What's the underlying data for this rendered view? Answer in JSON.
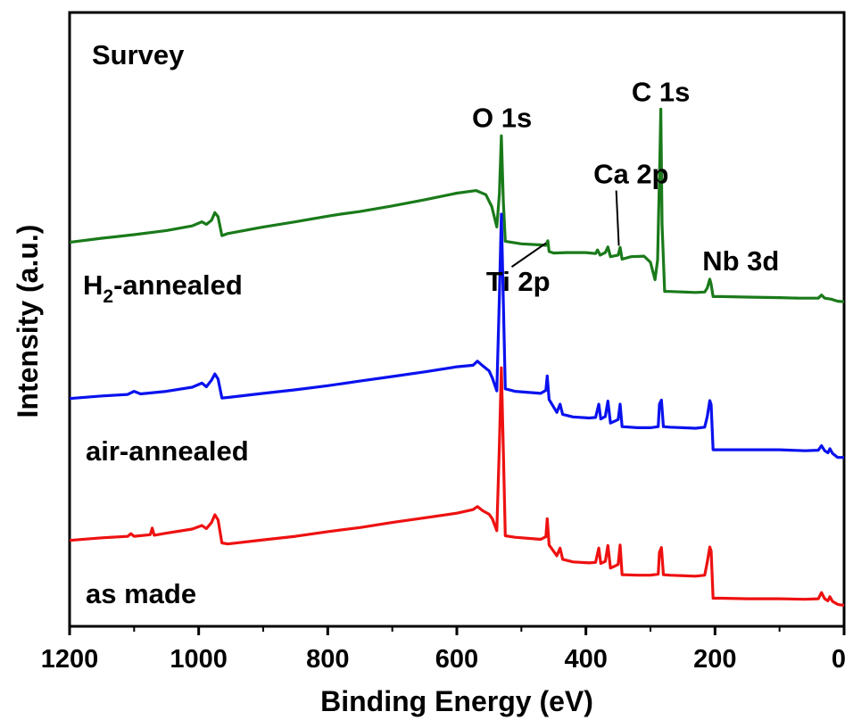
{
  "chart_data": {
    "type": "line",
    "panel_label": "Survey",
    "xlabel": "Binding Energy (eV)",
    "ylabel": "Intensity (a.u.)",
    "xlim": [
      1200,
      0
    ],
    "x_reversed": true,
    "x_ticks": [
      1200,
      1000,
      800,
      600,
      400,
      200,
      0
    ],
    "x_tick_labels": [
      "1200",
      "1000",
      "800",
      "600",
      "400",
      "200",
      "0"
    ],
    "y_ticks_shown": false,
    "ylim": [
      0,
      100
    ],
    "grid": false,
    "series": [
      {
        "name": "H2-annealed",
        "label_main": "H",
        "label_sub": "2",
        "label_rest": "-annealed",
        "color": "#1a7a1a",
        "points": [
          [
            1200,
            71.5
          ],
          [
            1150,
            72.3
          ],
          [
            1100,
            73.0
          ],
          [
            1050,
            73.8
          ],
          [
            1010,
            74.7
          ],
          [
            995,
            75.5
          ],
          [
            988,
            75.0
          ],
          [
            980,
            75.8
          ],
          [
            975,
            77.3
          ],
          [
            970,
            76.5
          ],
          [
            964,
            72.8
          ],
          [
            955,
            73.2
          ],
          [
            900,
            74.5
          ],
          [
            850,
            75.5
          ],
          [
            800,
            76.6
          ],
          [
            780,
            77.0
          ],
          [
            750,
            77.5
          ],
          [
            700,
            78.6
          ],
          [
            650,
            79.8
          ],
          [
            600,
            81.1
          ],
          [
            570,
            81.6
          ],
          [
            555,
            80.8
          ],
          [
            546,
            78.5
          ],
          [
            538,
            74.5
          ],
          [
            534,
            81.0
          ],
          [
            531,
            92.3
          ],
          [
            528,
            79.5
          ],
          [
            525,
            71.7
          ],
          [
            500,
            71.2
          ],
          [
            470,
            71.0
          ],
          [
            462,
            70.9
          ],
          [
            459,
            71.8
          ],
          [
            457,
            69.7
          ],
          [
            450,
            69.4
          ],
          [
            430,
            69.5
          ],
          [
            400,
            69.5
          ],
          [
            385,
            69.3
          ],
          [
            382,
            70.0
          ],
          [
            378,
            69.0
          ],
          [
            370,
            69.5
          ],
          [
            366,
            70.6
          ],
          [
            362,
            68.7
          ],
          [
            350,
            69.0
          ],
          [
            347,
            70.5
          ],
          [
            344,
            68.2
          ],
          [
            330,
            68.7
          ],
          [
            310,
            68.8
          ],
          [
            300,
            67.6
          ],
          [
            293,
            64.2
          ],
          [
            289,
            68.0
          ],
          [
            285,
            90.0
          ],
          [
            284,
            97.5
          ],
          [
            282,
            75.0
          ],
          [
            278,
            61.9
          ],
          [
            270,
            61.9
          ],
          [
            230,
            61.7
          ],
          [
            216,
            61.8
          ],
          [
            212,
            62.6
          ],
          [
            208,
            64.3
          ],
          [
            206,
            63.3
          ],
          [
            203,
            60.9
          ],
          [
            190,
            60.9
          ],
          [
            150,
            60.8
          ],
          [
            100,
            60.7
          ],
          [
            70,
            60.6
          ],
          [
            40,
            60.6
          ],
          [
            35,
            61.2
          ],
          [
            30,
            60.6
          ],
          [
            20,
            60.4
          ],
          [
            10,
            60.0
          ],
          [
            0,
            59.9
          ]
        ]
      },
      {
        "name": "air-annealed",
        "label": "air-annealed",
        "color": "#0a12ee",
        "points": [
          [
            1200,
            41.0
          ],
          [
            1150,
            41.5
          ],
          [
            1110,
            41.8
          ],
          [
            1100,
            42.4
          ],
          [
            1090,
            41.9
          ],
          [
            1050,
            42.4
          ],
          [
            1010,
            43.2
          ],
          [
            995,
            44.0
          ],
          [
            988,
            43.3
          ],
          [
            980,
            44.6
          ],
          [
            975,
            45.8
          ],
          [
            970,
            44.8
          ],
          [
            964,
            41.1
          ],
          [
            955,
            41.2
          ],
          [
            900,
            42.0
          ],
          [
            850,
            42.7
          ],
          [
            800,
            43.5
          ],
          [
            750,
            44.4
          ],
          [
            700,
            45.3
          ],
          [
            650,
            46.2
          ],
          [
            600,
            47.2
          ],
          [
            575,
            47.5
          ],
          [
            568,
            48.3
          ],
          [
            560,
            47.4
          ],
          [
            550,
            46.4
          ],
          [
            545,
            45.0
          ],
          [
            538,
            42.5
          ],
          [
            534,
            61.0
          ],
          [
            531,
            77.0
          ],
          [
            528,
            60.0
          ],
          [
            525,
            42.9
          ],
          [
            510,
            42.4
          ],
          [
            470,
            42.0
          ],
          [
            462,
            42.6
          ],
          [
            460,
            45.4
          ],
          [
            457,
            40.8
          ],
          [
            445,
            38.3
          ],
          [
            440,
            39.9
          ],
          [
            436,
            37.9
          ],
          [
            420,
            37.4
          ],
          [
            395,
            37.2
          ],
          [
            385,
            37.3
          ],
          [
            380,
            39.9
          ],
          [
            377,
            37.0
          ],
          [
            370,
            37.5
          ],
          [
            366,
            40.5
          ],
          [
            362,
            36.2
          ],
          [
            355,
            36.6
          ],
          [
            350,
            36.9
          ],
          [
            347,
            39.9
          ],
          [
            344,
            35.5
          ],
          [
            320,
            35.3
          ],
          [
            300,
            35.3
          ],
          [
            288,
            35.5
          ],
          [
            286,
            39.9
          ],
          [
            283,
            40.7
          ],
          [
            280,
            35.5
          ],
          [
            270,
            35.4
          ],
          [
            230,
            35.2
          ],
          [
            216,
            35.4
          ],
          [
            212,
            37.5
          ],
          [
            208,
            40.6
          ],
          [
            206,
            39.8
          ],
          [
            203,
            31.0
          ],
          [
            190,
            31.0
          ],
          [
            150,
            31.0
          ],
          [
            100,
            31.0
          ],
          [
            60,
            30.8
          ],
          [
            40,
            30.9
          ],
          [
            35,
            31.8
          ],
          [
            30,
            30.8
          ],
          [
            25,
            30.4
          ],
          [
            22,
            31.2
          ],
          [
            18,
            30.3
          ],
          [
            10,
            29.5
          ],
          [
            0,
            29.5
          ]
        ]
      },
      {
        "name": "as made",
        "label": "as made",
        "color": "#ee1111",
        "points": [
          [
            1200,
            13.3
          ],
          [
            1150,
            13.8
          ],
          [
            1110,
            14.1
          ],
          [
            1105,
            14.6
          ],
          [
            1100,
            14.1
          ],
          [
            1075,
            14.4
          ],
          [
            1072,
            15.7
          ],
          [
            1069,
            14.3
          ],
          [
            1050,
            14.7
          ],
          [
            1010,
            15.5
          ],
          [
            995,
            16.2
          ],
          [
            988,
            15.6
          ],
          [
            980,
            16.8
          ],
          [
            975,
            18.3
          ],
          [
            970,
            17.3
          ],
          [
            964,
            12.8
          ],
          [
            955,
            12.6
          ],
          [
            900,
            13.4
          ],
          [
            850,
            14.1
          ],
          [
            800,
            15.0
          ],
          [
            750,
            15.8
          ],
          [
            700,
            16.8
          ],
          [
            650,
            17.7
          ],
          [
            600,
            18.6
          ],
          [
            575,
            19.3
          ],
          [
            568,
            19.9
          ],
          [
            560,
            19.1
          ],
          [
            550,
            18.4
          ],
          [
            545,
            17.5
          ],
          [
            538,
            15.2
          ],
          [
            534,
            32.0
          ],
          [
            531,
            47.0
          ],
          [
            528,
            31.0
          ],
          [
            525,
            14.2
          ],
          [
            510,
            13.9
          ],
          [
            470,
            13.5
          ],
          [
            462,
            14.0
          ],
          [
            460,
            17.5
          ],
          [
            457,
            12.4
          ],
          [
            445,
            10.3
          ],
          [
            440,
            11.8
          ],
          [
            436,
            9.6
          ],
          [
            420,
            9.1
          ],
          [
            395,
            8.9
          ],
          [
            385,
            9.0
          ],
          [
            380,
            11.8
          ],
          [
            377,
            8.8
          ],
          [
            370,
            9.2
          ],
          [
            366,
            12.3
          ],
          [
            362,
            7.9
          ],
          [
            355,
            8.3
          ],
          [
            350,
            8.6
          ],
          [
            347,
            12.4
          ],
          [
            344,
            6.6
          ],
          [
            320,
            6.5
          ],
          [
            300,
            6.5
          ],
          [
            288,
            6.7
          ],
          [
            286,
            11.0
          ],
          [
            283,
            11.9
          ],
          [
            280,
            6.6
          ],
          [
            270,
            6.5
          ],
          [
            230,
            6.3
          ],
          [
            216,
            6.5
          ],
          [
            212,
            9.1
          ],
          [
            208,
            12.0
          ],
          [
            206,
            11.2
          ],
          [
            203,
            2.0
          ],
          [
            190,
            2.0
          ],
          [
            150,
            1.9
          ],
          [
            100,
            1.9
          ],
          [
            60,
            1.8
          ],
          [
            40,
            1.9
          ],
          [
            35,
            3.1
          ],
          [
            30,
            1.9
          ],
          [
            25,
            1.5
          ],
          [
            22,
            2.3
          ],
          [
            18,
            1.4
          ],
          [
            10,
            0.8
          ],
          [
            0,
            0.6
          ]
        ]
      }
    ],
    "annotations": [
      {
        "text": "O 1s",
        "x": 530,
        "y": 94,
        "pointer": false
      },
      {
        "text": "C 1s",
        "x": 284,
        "y": 99,
        "pointer": false
      },
      {
        "text": "Ca 2p",
        "x": 350,
        "y": 83,
        "pointer": true,
        "pointer_to_y": 70.5
      },
      {
        "text": "Ti 2p",
        "x": 460,
        "y": 62,
        "pointer": true,
        "pointer_to_y": 70.8
      },
      {
        "text": "Nb 3d",
        "x": 208,
        "y": 66,
        "pointer": false
      }
    ]
  }
}
